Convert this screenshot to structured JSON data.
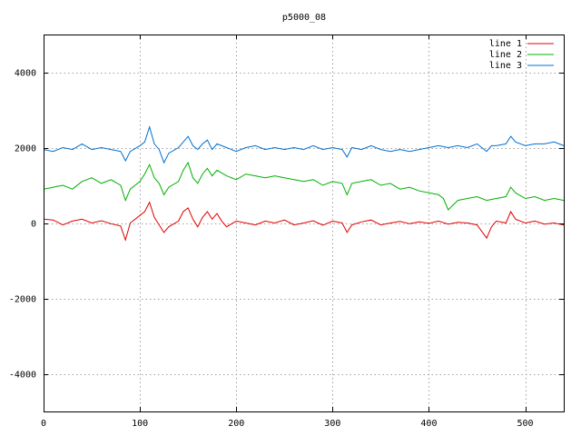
{
  "chart_data": {
    "type": "line",
    "title": "p5000_08",
    "xlim": [
      0,
      540
    ],
    "ylim": [
      -5000,
      5000
    ],
    "x_ticks": [
      0,
      100,
      200,
      300,
      400,
      500
    ],
    "y_ticks": [
      -4000,
      -2000,
      0,
      2000,
      4000
    ],
    "grid": true,
    "legend_position": "top-right",
    "series": [
      {
        "name": "line 1",
        "color": "#e00000",
        "points": [
          [
            0,
            100
          ],
          [
            10,
            80
          ],
          [
            20,
            -50
          ],
          [
            30,
            50
          ],
          [
            40,
            100
          ],
          [
            50,
            0
          ],
          [
            60,
            60
          ],
          [
            70,
            -20
          ],
          [
            80,
            -80
          ],
          [
            85,
            -450
          ],
          [
            90,
            0
          ],
          [
            100,
            200
          ],
          [
            105,
            300
          ],
          [
            110,
            550
          ],
          [
            115,
            150
          ],
          [
            120,
            -50
          ],
          [
            125,
            -250
          ],
          [
            130,
            -100
          ],
          [
            140,
            50
          ],
          [
            145,
            300
          ],
          [
            150,
            400
          ],
          [
            155,
            100
          ],
          [
            160,
            -100
          ],
          [
            165,
            150
          ],
          [
            170,
            300
          ],
          [
            175,
            100
          ],
          [
            180,
            250
          ],
          [
            185,
            50
          ],
          [
            190,
            -100
          ],
          [
            200,
            50
          ],
          [
            210,
            0
          ],
          [
            220,
            -50
          ],
          [
            230,
            50
          ],
          [
            240,
            0
          ],
          [
            250,
            80
          ],
          [
            260,
            -50
          ],
          [
            270,
            0
          ],
          [
            280,
            60
          ],
          [
            290,
            -60
          ],
          [
            300,
            50
          ],
          [
            310,
            0
          ],
          [
            315,
            -250
          ],
          [
            320,
            -50
          ],
          [
            330,
            30
          ],
          [
            340,
            80
          ],
          [
            350,
            -50
          ],
          [
            360,
            0
          ],
          [
            370,
            40
          ],
          [
            380,
            -20
          ],
          [
            390,
            30
          ],
          [
            400,
            -10
          ],
          [
            410,
            50
          ],
          [
            420,
            -30
          ],
          [
            430,
            20
          ],
          [
            440,
            0
          ],
          [
            450,
            -50
          ],
          [
            460,
            -400
          ],
          [
            465,
            -100
          ],
          [
            470,
            50
          ],
          [
            480,
            0
          ],
          [
            485,
            300
          ],
          [
            490,
            100
          ],
          [
            500,
            0
          ],
          [
            510,
            50
          ],
          [
            520,
            -30
          ],
          [
            530,
            0
          ],
          [
            540,
            -50
          ]
        ]
      },
      {
        "name": "line 2",
        "color": "#00b000",
        "points": [
          [
            0,
            900
          ],
          [
            10,
            950
          ],
          [
            20,
            1000
          ],
          [
            30,
            900
          ],
          [
            40,
            1100
          ],
          [
            50,
            1200
          ],
          [
            60,
            1050
          ],
          [
            70,
            1150
          ],
          [
            80,
            1000
          ],
          [
            85,
            600
          ],
          [
            90,
            900
          ],
          [
            100,
            1100
          ],
          [
            105,
            1300
          ],
          [
            110,
            1550
          ],
          [
            115,
            1200
          ],
          [
            120,
            1050
          ],
          [
            125,
            750
          ],
          [
            130,
            950
          ],
          [
            140,
            1100
          ],
          [
            145,
            1400
          ],
          [
            150,
            1600
          ],
          [
            155,
            1200
          ],
          [
            160,
            1050
          ],
          [
            165,
            1300
          ],
          [
            170,
            1450
          ],
          [
            175,
            1250
          ],
          [
            180,
            1400
          ],
          [
            190,
            1250
          ],
          [
            200,
            1150
          ],
          [
            210,
            1300
          ],
          [
            220,
            1250
          ],
          [
            230,
            1200
          ],
          [
            240,
            1250
          ],
          [
            250,
            1200
          ],
          [
            260,
            1150
          ],
          [
            270,
            1100
          ],
          [
            280,
            1150
          ],
          [
            290,
            1000
          ],
          [
            300,
            1100
          ],
          [
            310,
            1050
          ],
          [
            315,
            750
          ],
          [
            320,
            1050
          ],
          [
            330,
            1100
          ],
          [
            340,
            1150
          ],
          [
            350,
            1000
          ],
          [
            360,
            1050
          ],
          [
            370,
            900
          ],
          [
            380,
            950
          ],
          [
            390,
            850
          ],
          [
            400,
            800
          ],
          [
            410,
            750
          ],
          [
            415,
            650
          ],
          [
            420,
            350
          ],
          [
            430,
            600
          ],
          [
            440,
            650
          ],
          [
            450,
            700
          ],
          [
            460,
            600
          ],
          [
            470,
            650
          ],
          [
            480,
            700
          ],
          [
            485,
            950
          ],
          [
            490,
            800
          ],
          [
            500,
            650
          ],
          [
            510,
            700
          ],
          [
            520,
            600
          ],
          [
            530,
            650
          ],
          [
            540,
            600
          ]
        ]
      },
      {
        "name": "line 3",
        "color": "#0070d0",
        "points": [
          [
            0,
            1950
          ],
          [
            10,
            1900
          ],
          [
            20,
            2000
          ],
          [
            30,
            1950
          ],
          [
            40,
            2100
          ],
          [
            50,
            1950
          ],
          [
            60,
            2000
          ],
          [
            70,
            1950
          ],
          [
            80,
            1900
          ],
          [
            85,
            1650
          ],
          [
            90,
            1900
          ],
          [
            100,
            2050
          ],
          [
            105,
            2150
          ],
          [
            110,
            2550
          ],
          [
            115,
            2100
          ],
          [
            120,
            1950
          ],
          [
            125,
            1600
          ],
          [
            130,
            1850
          ],
          [
            140,
            2000
          ],
          [
            145,
            2150
          ],
          [
            150,
            2300
          ],
          [
            155,
            2050
          ],
          [
            160,
            1950
          ],
          [
            165,
            2100
          ],
          [
            170,
            2200
          ],
          [
            175,
            1950
          ],
          [
            180,
            2100
          ],
          [
            190,
            2000
          ],
          [
            200,
            1900
          ],
          [
            210,
            2000
          ],
          [
            220,
            2050
          ],
          [
            230,
            1950
          ],
          [
            240,
            2000
          ],
          [
            250,
            1950
          ],
          [
            260,
            2000
          ],
          [
            270,
            1950
          ],
          [
            280,
            2050
          ],
          [
            290,
            1950
          ],
          [
            300,
            2000
          ],
          [
            310,
            1950
          ],
          [
            315,
            1750
          ],
          [
            320,
            2000
          ],
          [
            330,
            1950
          ],
          [
            340,
            2050
          ],
          [
            350,
            1950
          ],
          [
            360,
            1900
          ],
          [
            370,
            1950
          ],
          [
            380,
            1900
          ],
          [
            390,
            1950
          ],
          [
            400,
            2000
          ],
          [
            410,
            2050
          ],
          [
            420,
            2000
          ],
          [
            430,
            2050
          ],
          [
            440,
            2000
          ],
          [
            450,
            2100
          ],
          [
            460,
            1900
          ],
          [
            465,
            2050
          ],
          [
            470,
            2050
          ],
          [
            480,
            2100
          ],
          [
            485,
            2300
          ],
          [
            490,
            2150
          ],
          [
            500,
            2050
          ],
          [
            510,
            2100
          ],
          [
            520,
            2100
          ],
          [
            530,
            2150
          ],
          [
            540,
            2050
          ]
        ]
      }
    ]
  }
}
